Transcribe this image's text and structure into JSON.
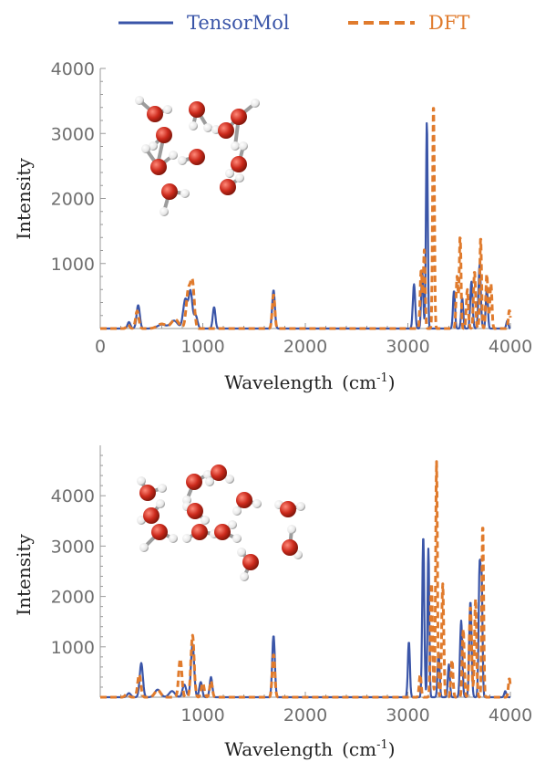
{
  "legend": {
    "tensormol_label": "TensorMol",
    "dft_label": "DFT"
  },
  "colors": {
    "tensormol": "#3a55a8",
    "dft": "#e07b2d",
    "axis": "#9a9a9a",
    "oxygen": "#cc2a1c",
    "hydrogen": "#e6e6e6"
  },
  "chart_data": [
    {
      "type": "line",
      "xlabel": "Wavelength",
      "xlabel_unit": "(cm",
      "xlabel_exp": "-1",
      "xlabel_close": ")",
      "ylabel": "Intensity",
      "xlim": [
        0,
        4000
      ],
      "ylim": [
        0,
        4000
      ],
      "xticks": [
        0,
        1000,
        2000,
        3000,
        4000
      ],
      "xtick_labels": [
        "0",
        "1000",
        "2000",
        "3000",
        "4000"
      ],
      "yticks": [
        1000,
        2000,
        3000,
        4000
      ],
      "ytick_labels": [
        "1000",
        "2000",
        "3000",
        "4000"
      ],
      "inset_icon": "water-cluster-icon",
      "series": [
        {
          "name": "TensorMol",
          "style": "solid",
          "peaks": [
            [
              280,
              100,
              20
            ],
            [
              370,
              360,
              22
            ],
            [
              600,
              60,
              60
            ],
            [
              720,
              120,
              50
            ],
            [
              830,
              450,
              30
            ],
            [
              880,
              560,
              25
            ],
            [
              930,
              200,
              25
            ],
            [
              1110,
              330,
              18
            ],
            [
              1690,
              590,
              18
            ],
            [
              3060,
              680,
              16
            ],
            [
              3140,
              880,
              14
            ],
            [
              3185,
              3180,
              12
            ],
            [
              3450,
              580,
              14
            ],
            [
              3530,
              470,
              14
            ],
            [
              3620,
              720,
              16
            ],
            [
              3700,
              980,
              16
            ],
            [
              3770,
              620,
              14
            ],
            [
              3970,
              120,
              14
            ]
          ]
        },
        {
          "name": "DFT",
          "style": "dashed",
          "peaks": [
            [
              270,
              60,
              20
            ],
            [
              360,
              270,
              22
            ],
            [
              600,
              70,
              60
            ],
            [
              730,
              140,
              50
            ],
            [
              860,
              580,
              30
            ],
            [
              900,
              650,
              25
            ],
            [
              1690,
              520,
              18
            ],
            [
              3130,
              900,
              14
            ],
            [
              3160,
              1200,
              12
            ],
            [
              3250,
              3480,
              12
            ],
            [
              3480,
              800,
              14
            ],
            [
              3510,
              1420,
              12
            ],
            [
              3580,
              600,
              14
            ],
            [
              3650,
              880,
              14
            ],
            [
              3710,
              1410,
              12
            ],
            [
              3770,
              850,
              14
            ],
            [
              3810,
              700,
              14
            ],
            [
              3990,
              280,
              14
            ]
          ]
        }
      ]
    },
    {
      "type": "line",
      "xlabel": "Wavelength",
      "xlabel_unit": "(cm",
      "xlabel_exp": "-1",
      "xlabel_close": ")",
      "ylabel": "Intensity",
      "xlim": [
        0,
        4000
      ],
      "ylim": [
        0,
        5000
      ],
      "xticks": [
        1000,
        2000,
        3000,
        4000
      ],
      "xtick_labels": [
        "1000",
        "2000",
        "3000",
        "4000"
      ],
      "yticks": [
        1000,
        2000,
        3000,
        4000
      ],
      "ytick_labels": [
        "1000",
        "2000",
        "3000",
        "4000"
      ],
      "inset_icon": "water-cluster-icon",
      "series": [
        {
          "name": "TensorMol",
          "style": "solid",
          "peaks": [
            [
              280,
              80,
              25
            ],
            [
              400,
              680,
              22
            ],
            [
              560,
              150,
              40
            ],
            [
              700,
              120,
              40
            ],
            [
              820,
              250,
              25
            ],
            [
              900,
              1050,
              22
            ],
            [
              980,
              300,
              20
            ],
            [
              1080,
              400,
              18
            ],
            [
              1690,
              1220,
              18
            ],
            [
              3010,
              1100,
              14
            ],
            [
              3150,
              3200,
              14
            ],
            [
              3200,
              2950,
              12
            ],
            [
              3300,
              880,
              14
            ],
            [
              3400,
              650,
              14
            ],
            [
              3520,
              1520,
              16
            ],
            [
              3610,
              1900,
              16
            ],
            [
              3700,
              2580,
              14
            ],
            [
              3720,
              2100,
              12
            ],
            [
              3950,
              120,
              14
            ]
          ]
        },
        {
          "name": "DFT",
          "style": "dashed",
          "peaks": [
            [
              260,
              60,
              25
            ],
            [
              380,
              450,
              22
            ],
            [
              560,
              140,
              40
            ],
            [
              780,
              760,
              22
            ],
            [
              900,
              1230,
              22
            ],
            [
              1000,
              280,
              20
            ],
            [
              1080,
              320,
              18
            ],
            [
              1690,
              850,
              18
            ],
            [
              3120,
              450,
              14
            ],
            [
              3230,
              2300,
              14
            ],
            [
              3280,
              4680,
              12
            ],
            [
              3340,
              2250,
              14
            ],
            [
              3430,
              750,
              14
            ],
            [
              3540,
              1350,
              14
            ],
            [
              3610,
              1800,
              16
            ],
            [
              3660,
              1950,
              14
            ],
            [
              3730,
              3450,
              12
            ],
            [
              3990,
              370,
              14
            ]
          ]
        }
      ]
    }
  ]
}
